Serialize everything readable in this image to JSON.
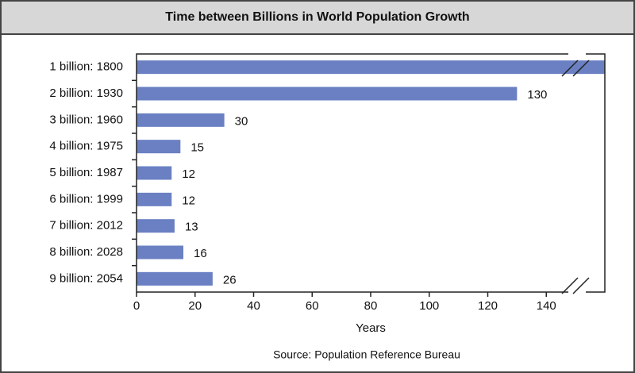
{
  "chart_data": {
    "type": "bar",
    "orientation": "horizontal",
    "title": "Time between Billions in World Population Growth",
    "categories": [
      "1 billion: 1800",
      "2 billion: 1930",
      "3 billion: 1960",
      "4 billion: 1975",
      "5 billion: 1987",
      "6 billion: 1999",
      "7 billion: 2012",
      "8 billion: 2028",
      "9 billion: 2054"
    ],
    "values": [
      160,
      130,
      30,
      15,
      12,
      12,
      13,
      16,
      26
    ],
    "value_labels": [
      null,
      "130",
      "30",
      "15",
      "12",
      "12",
      "13",
      "16",
      "26"
    ],
    "color": "#6a80c3",
    "xlim": [
      0,
      160
    ],
    "xticks": [
      0,
      20,
      40,
      60,
      80,
      100,
      120,
      140
    ],
    "xlabel": "Years",
    "source": "Source: Population Reference Bureau"
  }
}
